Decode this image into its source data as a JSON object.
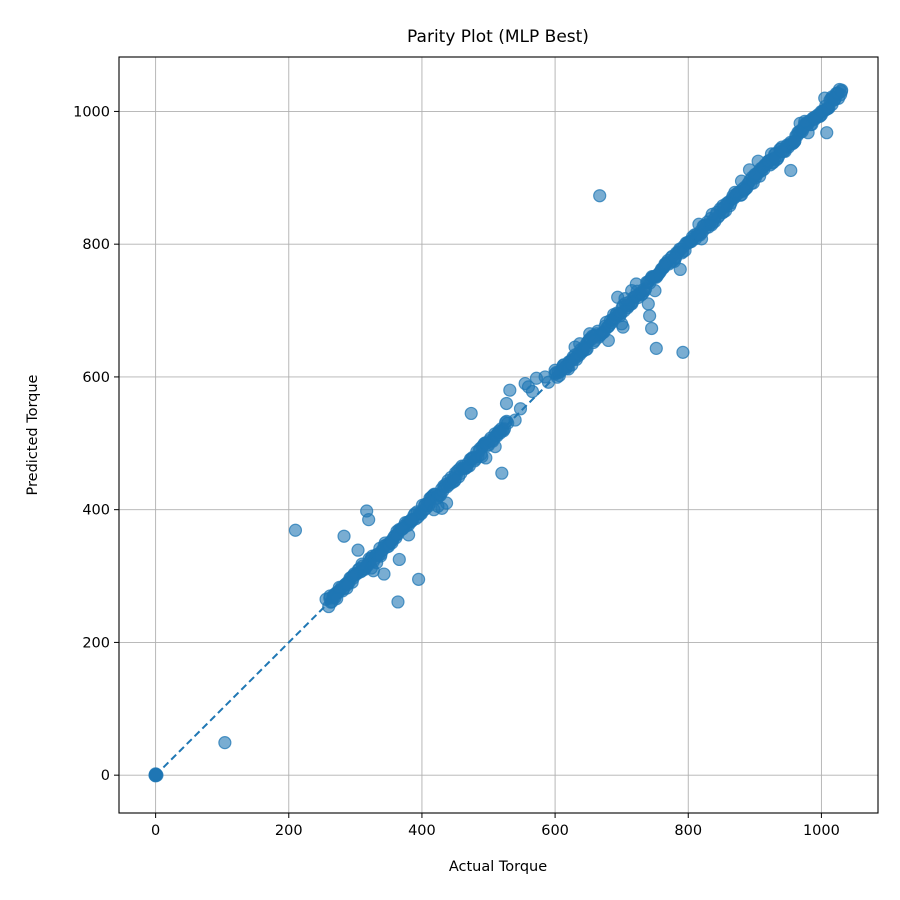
{
  "chart_data": {
    "type": "scatter",
    "title": "Parity Plot (MLP Best)",
    "xlabel": "Actual Torque",
    "ylabel": "Predicted Torque",
    "xlim": [
      -55,
      1085
    ],
    "ylim": [
      -57,
      1082
    ],
    "xticks": [
      0,
      200,
      400,
      600,
      800,
      1000
    ],
    "yticks": [
      0,
      200,
      400,
      600,
      800,
      1000
    ],
    "grid": true,
    "colors": {
      "points": "#1f77b4",
      "parity_line": "#1f77b4"
    },
    "parity_line": {
      "from": [
        0,
        0
      ],
      "to": [
        1030,
        1030
      ],
      "style": "dashed"
    },
    "dense_band": {
      "segments": [
        {
          "x_range": [
            260,
            420
          ],
          "offset_range": [
            -6,
            6
          ]
        },
        {
          "x_range": [
            420,
            530
          ],
          "offset_range": [
            -6,
            6
          ]
        },
        {
          "x_range": [
            600,
            1032
          ],
          "offset_range": [
            -6,
            6
          ]
        }
      ]
    },
    "points": [
      [
        0,
        0
      ],
      [
        0,
        1
      ],
      [
        1,
        0
      ],
      [
        0,
        -1
      ],
      [
        1,
        1
      ],
      [
        -1,
        0
      ],
      [
        2,
        0
      ],
      [
        0,
        2
      ],
      [
        104,
        49
      ],
      [
        210,
        369
      ],
      [
        256,
        265
      ],
      [
        262,
        270
      ],
      [
        268,
        272
      ],
      [
        272,
        266
      ],
      [
        276,
        283
      ],
      [
        283,
        360
      ],
      [
        288,
        287
      ],
      [
        296,
        300
      ],
      [
        304,
        339
      ],
      [
        310,
        318
      ],
      [
        317,
        398
      ],
      [
        320,
        385
      ],
      [
        324,
        312
      ],
      [
        327,
        308
      ],
      [
        332,
        320
      ],
      [
        338,
        330
      ],
      [
        343,
        303
      ],
      [
        350,
        345
      ],
      [
        355,
        350
      ],
      [
        362,
        362
      ],
      [
        364,
        261
      ],
      [
        366,
        325
      ],
      [
        370,
        372
      ],
      [
        380,
        362
      ],
      [
        384,
        385
      ],
      [
        395,
        295
      ],
      [
        405,
        408
      ],
      [
        412,
        410
      ],
      [
        418,
        400
      ],
      [
        424,
        405
      ],
      [
        430,
        402
      ],
      [
        437,
        410
      ],
      [
        450,
        445
      ],
      [
        474,
        545
      ],
      [
        490,
        480
      ],
      [
        496,
        478
      ],
      [
        510,
        495
      ],
      [
        520,
        455
      ],
      [
        527,
        560
      ],
      [
        532,
        580
      ],
      [
        540,
        535
      ],
      [
        548,
        552
      ],
      [
        555,
        590
      ],
      [
        560,
        585
      ],
      [
        566,
        578
      ],
      [
        572,
        598
      ],
      [
        585,
        600
      ],
      [
        590,
        592
      ],
      [
        600,
        610
      ],
      [
        612,
        617
      ],
      [
        620,
        612
      ],
      [
        625,
        618
      ],
      [
        630,
        645
      ],
      [
        637,
        650
      ],
      [
        642,
        640
      ],
      [
        648,
        642
      ],
      [
        652,
        665
      ],
      [
        660,
        655
      ],
      [
        667,
        873
      ],
      [
        680,
        655
      ],
      [
        694,
        720
      ],
      [
        700,
        680
      ],
      [
        702,
        675
      ],
      [
        705,
        718
      ],
      [
        715,
        730
      ],
      [
        722,
        740
      ],
      [
        740,
        710
      ],
      [
        742,
        692
      ],
      [
        745,
        673
      ],
      [
        750,
        730
      ],
      [
        752,
        643
      ],
      [
        765,
        770
      ],
      [
        780,
        780
      ],
      [
        788,
        762
      ],
      [
        792,
        637
      ],
      [
        816,
        830
      ],
      [
        820,
        808
      ],
      [
        836,
        845
      ],
      [
        852,
        858
      ],
      [
        870,
        878
      ],
      [
        880,
        895
      ],
      [
        885,
        882
      ],
      [
        892,
        912
      ],
      [
        900,
        905
      ],
      [
        905,
        925
      ],
      [
        912,
        915
      ],
      [
        920,
        925
      ],
      [
        925,
        936
      ],
      [
        930,
        930
      ],
      [
        940,
        940
      ],
      [
        954,
        911
      ],
      [
        960,
        955
      ],
      [
        968,
        982
      ],
      [
        975,
        985
      ],
      [
        980,
        968
      ],
      [
        990,
        988
      ],
      [
        1000,
        1000
      ],
      [
        1005,
        1020
      ],
      [
        1010,
        1005
      ],
      [
        1016,
        1022
      ],
      [
        1008,
        968
      ],
      [
        1020,
        1018
      ],
      [
        1025,
        1027
      ],
      [
        1030,
        1030
      ]
    ]
  }
}
